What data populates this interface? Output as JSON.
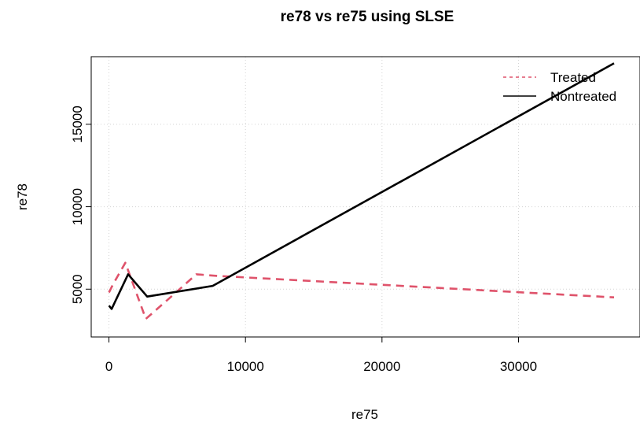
{
  "chart_data": {
    "type": "line",
    "title": "re78 vs re75 using SLSE",
    "xlabel": "re75",
    "ylabel": "re78",
    "xlim": [
      -1300,
      38900
    ],
    "ylim": [
      2100,
      19100
    ],
    "x_ticks": [
      0,
      10000,
      20000,
      30000
    ],
    "y_ticks": [
      5000,
      10000,
      15000
    ],
    "grid": true,
    "legend_position": "top-right",
    "series": [
      {
        "name": "Treated",
        "color": "#DF536B",
        "style": "dashed",
        "points": [
          {
            "x": 0,
            "y": 4800
          },
          {
            "x": 300,
            "y": 5300
          },
          {
            "x": 1200,
            "y": 6600
          },
          {
            "x": 2700,
            "y": 3200
          },
          {
            "x": 4500,
            "y": 4500
          },
          {
            "x": 6400,
            "y": 5900
          },
          {
            "x": 8000,
            "y": 5800
          },
          {
            "x": 37000,
            "y": 4500
          }
        ]
      },
      {
        "name": "Nontreated",
        "color": "#000000",
        "style": "solid",
        "points": [
          {
            "x": 0,
            "y": 4000
          },
          {
            "x": 200,
            "y": 3800
          },
          {
            "x": 1400,
            "y": 5900
          },
          {
            "x": 2800,
            "y": 4550
          },
          {
            "x": 7600,
            "y": 5200
          },
          {
            "x": 37000,
            "y": 18700
          }
        ]
      }
    ]
  }
}
